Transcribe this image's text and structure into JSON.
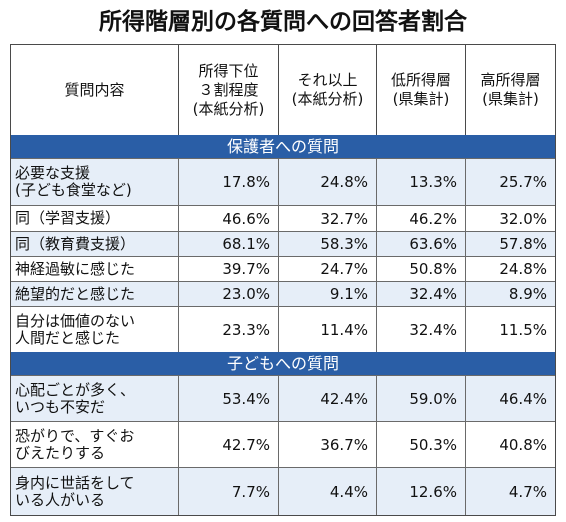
{
  "title": "所得階層別の各質問への回答者割合",
  "headers": [
    "質問内容",
    "所得下位\n３割程度\n(本紙分析)",
    "それ以上\n(本紙分析)",
    "低所得層\n(県集計)",
    "高所得層\n(県集計)"
  ],
  "sections": [
    {
      "label": "保護者への質問",
      "rows": [
        {
          "label": "必要な支援\n(子ども食堂など)",
          "values": [
            "17.8%",
            "24.8%",
            "13.3%",
            "25.7%"
          ]
        },
        {
          "label": "同（学習支援）",
          "values": [
            "46.6%",
            "32.7%",
            "46.2%",
            "32.0%"
          ]
        },
        {
          "label": "同（教育費支援）",
          "values": [
            "68.1%",
            "58.3%",
            "63.6%",
            "57.8%"
          ]
        },
        {
          "label": "神経過敏に感じた",
          "values": [
            "39.7%",
            "24.7%",
            "50.8%",
            "24.8%"
          ]
        },
        {
          "label": "絶望的だと感じた",
          "values": [
            "23.0%",
            "9.1%",
            "32.4%",
            "8.9%"
          ]
        },
        {
          "label": "自分は価値のない\n人間だと感じた",
          "values": [
            "23.3%",
            "11.4%",
            "32.4%",
            "11.5%"
          ]
        }
      ]
    },
    {
      "label": "子どもへの質問",
      "rows": [
        {
          "label": "心配ごとが多く、\nいつも不安だ",
          "values": [
            "53.4%",
            "42.4%",
            "59.0%",
            "46.4%"
          ]
        },
        {
          "label": "恐がりで、すぐお\nびえたりする",
          "values": [
            "42.7%",
            "36.7%",
            "50.3%",
            "40.8%"
          ]
        },
        {
          "label": "身内に世話をして\nいる人がいる",
          "values": [
            "7.7%",
            "4.4%",
            "12.6%",
            "4.7%"
          ]
        }
      ]
    }
  ]
}
